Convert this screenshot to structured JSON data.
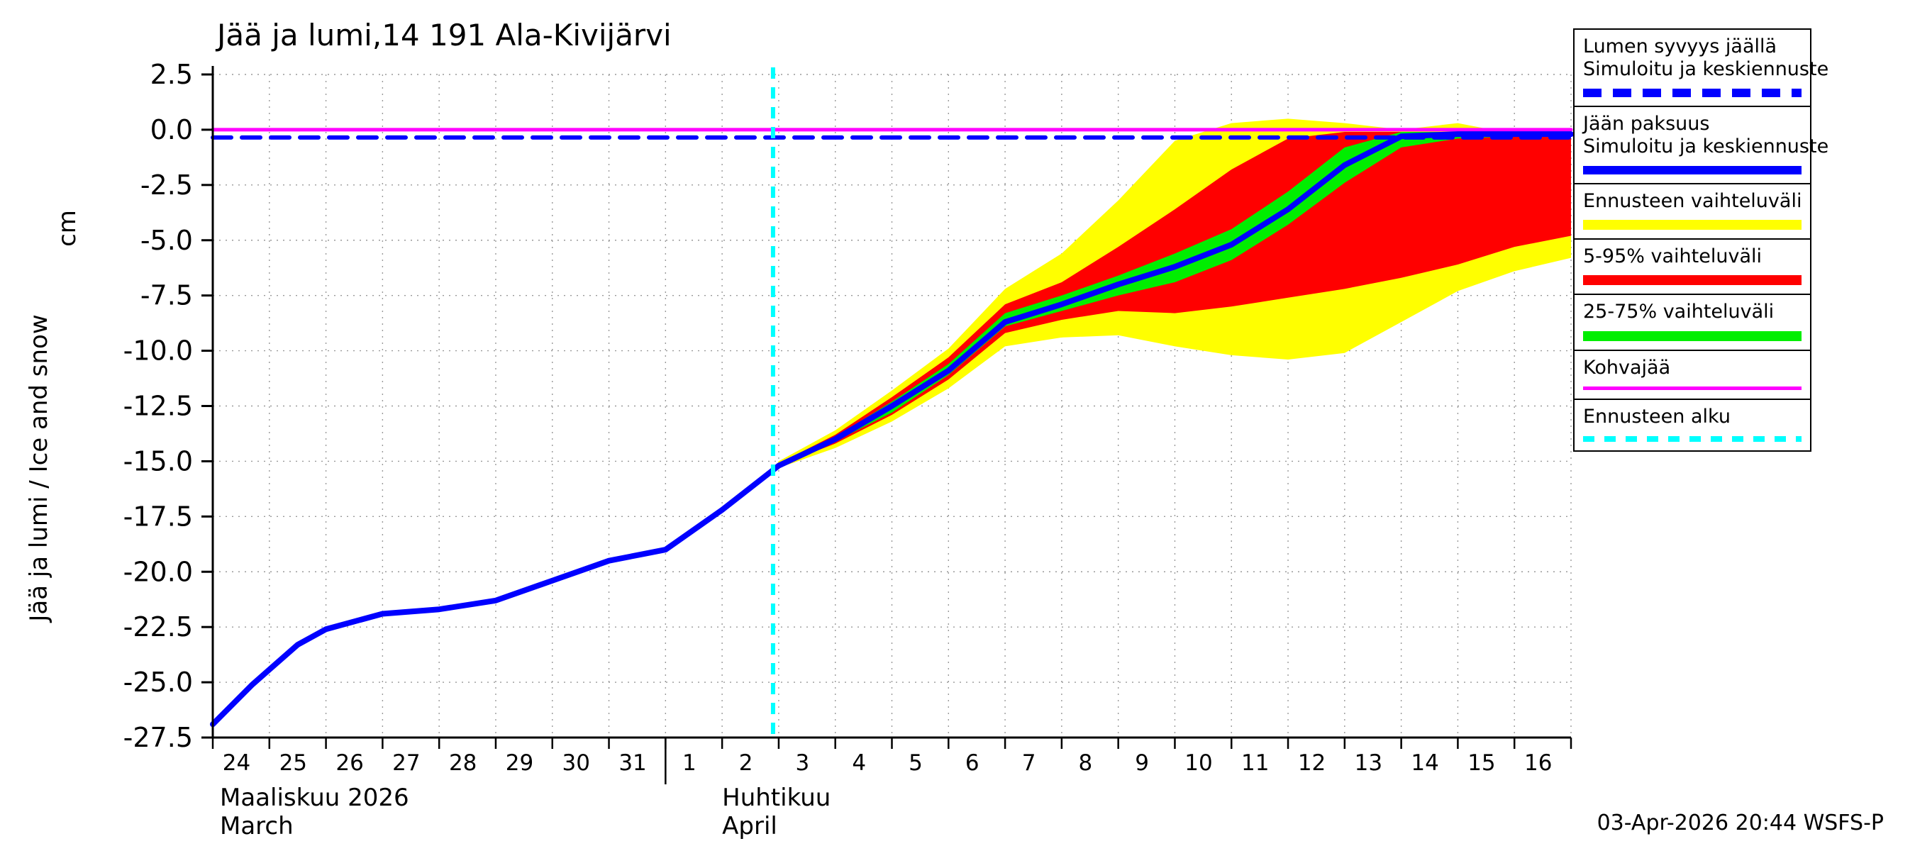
{
  "title": "Jää ja lumi,14 191 Ala-Kivijärvi",
  "footer": "03-Apr-2026 20:44 WSFS-P",
  "x_axis": {
    "month1_fi": "Maaliskuu 2026",
    "month1_en": "March",
    "month2_fi": "Huhtikuu",
    "month2_en": "April"
  },
  "legend": [
    {
      "lines": [
        "Lumen syvyys jäällä",
        "Simuloitu ja keskiennuste"
      ],
      "color": "#0000ff",
      "style": "dashed",
      "thickness": 12,
      "dash": [
        26,
        16
      ]
    },
    {
      "lines": [
        "Jään paksuus",
        "Simuloitu ja keskiennuste"
      ],
      "color": "#0000ff",
      "style": "solid",
      "thickness": 12,
      "dash": [
        0,
        0
      ]
    },
    {
      "lines": [
        "Ennusteen vaihteluväli"
      ],
      "color": "#ffff00",
      "style": "solid",
      "thickness": 14,
      "dash": [
        0,
        0
      ]
    },
    {
      "lines": [
        "5-95% vaihteluväli"
      ],
      "color": "#ff0000",
      "style": "solid",
      "thickness": 14,
      "dash": [
        0,
        0
      ]
    },
    {
      "lines": [
        "25-75% vaihteluväli"
      ],
      "color": "#00ee00",
      "style": "solid",
      "thickness": 14,
      "dash": [
        0,
        0
      ]
    },
    {
      "lines": [
        "Kohvajää"
      ],
      "color": "#ff00ff",
      "style": "solid",
      "thickness": 5,
      "dash": [
        0,
        0
      ]
    },
    {
      "lines": [
        "Ennusteen alku"
      ],
      "color": "#00ffff",
      "style": "dashed",
      "thickness": 8,
      "dash": [
        16,
        14
      ]
    }
  ],
  "chart_data": {
    "type": "line",
    "title": "Jää ja lumi,14 191 Ala-Kivijärvi",
    "ylabel": "Jää ja lumi / Ice and snow",
    "y_unit": "cm",
    "ylim": [
      -27.5,
      2.5
    ],
    "ytick_step": 2.5,
    "x_tick_labels": [
      "24",
      "25",
      "26",
      "27",
      "28",
      "29",
      "30",
      "31",
      "1",
      "2",
      "3",
      "4",
      "5",
      "6",
      "7",
      "8",
      "9",
      "10",
      "11",
      "12",
      "13",
      "14",
      "15",
      "16"
    ],
    "x_range_days": 24,
    "month_separator_x": 8,
    "forecast_start_x": 9.9,
    "forecast_start_color": "#00ffff",
    "grid": true,
    "bands": [
      {
        "id": "forecast-range",
        "name": "Ennusteen vaihteluväli",
        "color": "#ffff00",
        "x": [
          9.9,
          10,
          11,
          12,
          13,
          14,
          15,
          16,
          17,
          18,
          19,
          20,
          21,
          22,
          23,
          24
        ],
        "hi": [
          -15.4,
          -15.0,
          -13.6,
          -11.8,
          -9.9,
          -7.2,
          -5.6,
          -3.2,
          -0.5,
          0.3,
          0.5,
          0.3,
          0.0,
          0.3,
          -0.2,
          -0.5
        ],
        "lo": [
          -15.4,
          -15.3,
          -14.4,
          -13.2,
          -11.7,
          -9.8,
          -9.4,
          -9.3,
          -9.8,
          -10.2,
          -10.4,
          -10.1,
          -8.7,
          -7.3,
          -6.4,
          -5.8
        ]
      },
      {
        "id": "p5-95",
        "name": "5-95% vaihteluväli",
        "color": "#ff0000",
        "x": [
          9.9,
          10,
          11,
          12,
          13,
          14,
          15,
          16,
          17,
          18,
          19,
          20,
          21,
          22,
          23,
          24
        ],
        "hi": [
          -15.4,
          -15.1,
          -13.8,
          -12.1,
          -10.3,
          -7.9,
          -6.9,
          -5.3,
          -3.6,
          -1.8,
          -0.4,
          -0.1,
          -0.1,
          -0.1,
          -0.1,
          -0.1
        ],
        "lo": [
          -15.4,
          -15.2,
          -14.2,
          -12.9,
          -11.3,
          -9.2,
          -8.6,
          -8.2,
          -8.3,
          -8.0,
          -7.6,
          -7.2,
          -6.7,
          -6.1,
          -5.3,
          -4.8
        ]
      },
      {
        "id": "p25-75",
        "name": "25-75% vaihteluväli",
        "color": "#00ee00",
        "x": [
          9.9,
          10,
          11,
          12,
          13,
          14,
          15,
          16,
          17,
          18,
          19,
          20,
          21,
          22,
          23,
          24
        ],
        "hi": [
          -15.4,
          -15.1,
          -13.9,
          -12.3,
          -10.6,
          -8.3,
          -7.5,
          -6.6,
          -5.6,
          -4.5,
          -2.8,
          -0.8,
          -0.1,
          -0.1,
          -0.1,
          -0.1
        ],
        "lo": [
          -15.4,
          -15.2,
          -14.1,
          -12.8,
          -11.1,
          -8.9,
          -8.2,
          -7.5,
          -6.9,
          -5.9,
          -4.3,
          -2.4,
          -0.8,
          -0.4,
          -0.3,
          -0.3
        ]
      }
    ],
    "series": [
      {
        "id": "kohvajaa",
        "name": "Kohvajää",
        "color": "#ff00ff",
        "style": "solid",
        "width": 5,
        "x": [
          0,
          24
        ],
        "y": [
          0,
          0
        ]
      },
      {
        "id": "snow-depth",
        "name": "Lumen syvyys jäällä - Simuloitu ja keskiennuste",
        "color": "#0000ff",
        "style": "dashed",
        "width": 6,
        "x": [
          0,
          24
        ],
        "y": [
          -0.35,
          -0.35
        ]
      },
      {
        "id": "ice-thickness",
        "name": "Jään paksuus - Simuloitu ja keskiennuste",
        "color": "#0000ff",
        "style": "solid",
        "width": 8,
        "x": [
          0,
          0.7,
          1.5,
          2,
          3,
          4,
          5,
          6,
          7,
          7.6,
          8,
          9,
          9.9,
          10,
          11,
          12,
          13,
          14,
          15,
          16,
          17,
          18,
          19,
          20,
          21,
          22,
          23,
          24
        ],
        "y": [
          -26.9,
          -25.1,
          -23.3,
          -22.6,
          -21.9,
          -21.7,
          -21.3,
          -20.4,
          -19.5,
          -19.2,
          -19.0,
          -17.2,
          -15.4,
          -15.2,
          -14.0,
          -12.5,
          -10.9,
          -8.7,
          -7.9,
          -7.0,
          -6.2,
          -5.2,
          -3.6,
          -1.6,
          -0.3,
          -0.2,
          -0.2,
          -0.2
        ]
      }
    ]
  }
}
